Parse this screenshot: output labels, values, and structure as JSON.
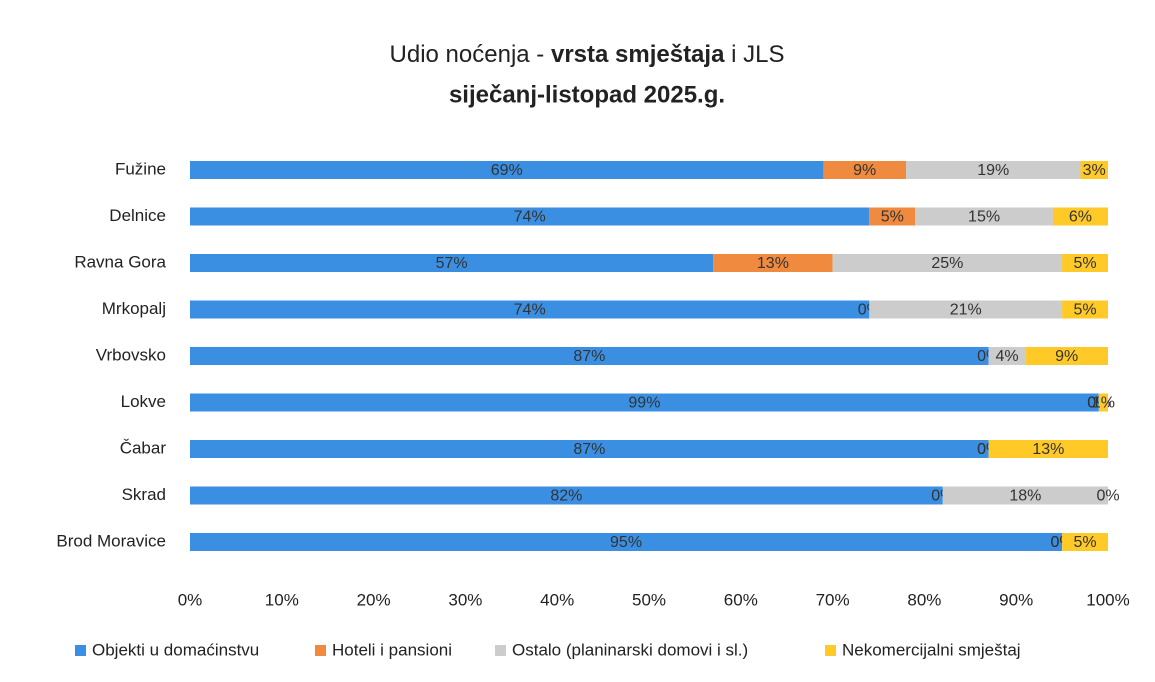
{
  "chart_data": {
    "type": "stacked_barh",
    "title": [
      "Udio noćenja - ",
      "vrsta smještaja",
      " i JLS"
    ],
    "subtitle": "siječanj-listopad 2025.g.",
    "categories": [
      "Fužine",
      "Delnice",
      "Ravna Gora",
      "Mrkopalj",
      "Vrbovsko",
      "Lokve",
      "Čabar",
      "Skrad",
      "Brod Moravice"
    ],
    "series": [
      {
        "name": "Objekti u domaćinstvu",
        "color": "#3b8fe2",
        "values": [
          69,
          74,
          57,
          74,
          87,
          99,
          87,
          82,
          95
        ],
        "value_labels": [
          "69%",
          "74%",
          "57%",
          "74%",
          "87%",
          "99%",
          "87%",
          "82%",
          "95%"
        ]
      },
      {
        "name": "Hoteli i pansioni",
        "color": "#ef8a3e",
        "values": [
          9,
          5,
          13,
          0,
          0,
          0,
          0,
          0,
          0
        ],
        "value_labels": [
          "9%",
          "5%",
          "13%",
          "0%",
          "0%",
          "0%",
          "0%",
          "0%",
          "0%"
        ]
      },
      {
        "name": "Ostalo (planinarski domovi i sl.)",
        "color": "#cccccc",
        "values": [
          19,
          15,
          25,
          21,
          4,
          0,
          0,
          18,
          0
        ],
        "value_labels": [
          "19%",
          "15%",
          "25%",
          "21%",
          "4%",
          "0%",
          "0%",
          "18%",
          "0%"
        ]
      },
      {
        "name": "Nekomercijalni smještaj",
        "color": "#ffc928",
        "values": [
          3,
          6,
          5,
          5,
          9,
          1,
          13,
          0,
          5
        ],
        "value_labels": [
          "3%",
          "6%",
          "5%",
          "5%",
          "9%",
          "1%",
          "13%",
          "0%",
          "5%"
        ]
      }
    ],
    "xlim": [
      0,
      100
    ],
    "xticks": [
      {
        "value": 0,
        "label": "0%"
      },
      {
        "value": 10,
        "label": "10%"
      },
      {
        "value": 20,
        "label": "20%"
      },
      {
        "value": 30,
        "label": "30%"
      },
      {
        "value": 40,
        "label": "40%"
      },
      {
        "value": 50,
        "label": "50%"
      },
      {
        "value": 60,
        "label": "60%"
      },
      {
        "value": 70,
        "label": "70%"
      },
      {
        "value": 80,
        "label": "80%"
      },
      {
        "value": 90,
        "label": "90%"
      },
      {
        "value": 100,
        "label": "100%"
      }
    ],
    "legend": "bottom"
  }
}
